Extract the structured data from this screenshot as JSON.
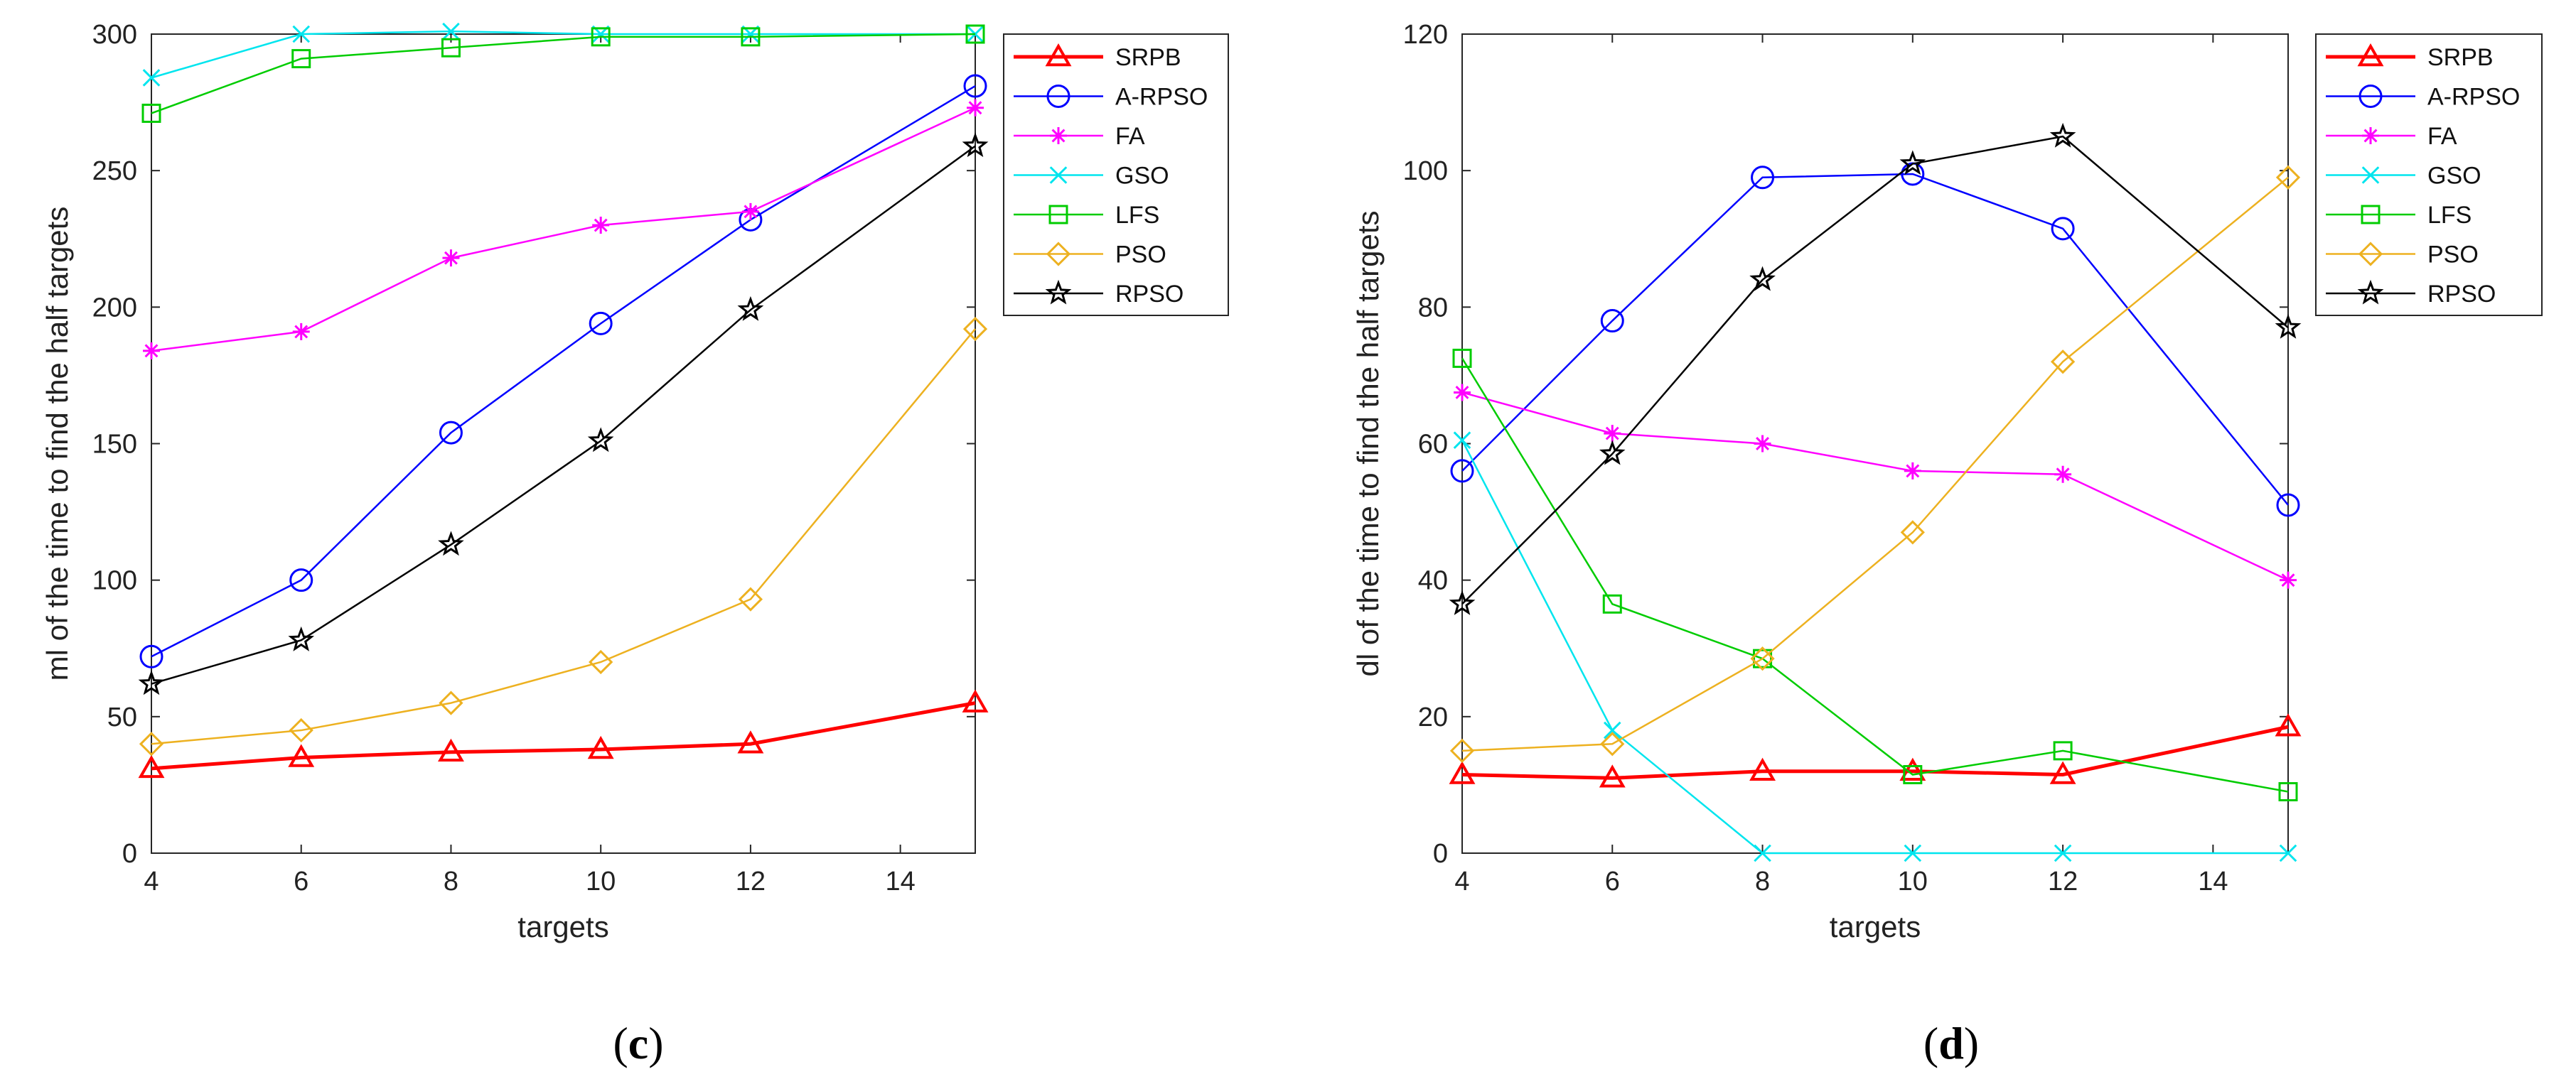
{
  "chart_data": [
    {
      "type": "line",
      "panel": "c",
      "panel_label": {
        "open": "(",
        "letter": "c",
        "close": ")"
      },
      "title": "",
      "xlabel": "targets",
      "ylabel": "ml of the time to find the half targets",
      "xlim": [
        4,
        15
      ],
      "ylim": [
        0,
        300
      ],
      "xticks": [
        4,
        6,
        8,
        10,
        12,
        14
      ],
      "yticks": [
        0,
        50,
        100,
        150,
        200,
        250,
        300
      ],
      "grid": false,
      "legend_position": "outside-right-top",
      "x": [
        4,
        6,
        8,
        10,
        12,
        15
      ],
      "series": [
        {
          "name": "SRPB",
          "color": "#ff0000",
          "marker": "triangle",
          "width": 2,
          "values": [
            31,
            35,
            37,
            38,
            40,
            55
          ]
        },
        {
          "name": "A-RPSO",
          "color": "#0000ff",
          "marker": "circle",
          "width": 1,
          "values": [
            72,
            100,
            154,
            194,
            232,
            281
          ]
        },
        {
          "name": "FA",
          "color": "#ff00ff",
          "marker": "asterisk",
          "width": 1,
          "values": [
            184,
            191,
            218,
            230,
            235,
            273
          ]
        },
        {
          "name": "GSO",
          "color": "#00e5ee",
          "marker": "x",
          "width": 1,
          "values": [
            284,
            300,
            301,
            300,
            300,
            300
          ]
        },
        {
          "name": "LFS",
          "color": "#00cc00",
          "marker": "square",
          "width": 1,
          "values": [
            271,
            291,
            295,
            299,
            299,
            300
          ]
        },
        {
          "name": "PSO",
          "color": "#edb120",
          "marker": "diamond",
          "width": 1,
          "values": [
            40,
            45,
            55,
            70,
            93,
            192
          ]
        },
        {
          "name": "RPSO",
          "color": "#000000",
          "marker": "star",
          "width": 1,
          "values": [
            62,
            78,
            113,
            151,
            199,
            259
          ]
        }
      ]
    },
    {
      "type": "line",
      "panel": "d",
      "panel_label": {
        "open": "(",
        "letter": "d",
        "close": ")"
      },
      "title": "",
      "xlabel": "targets",
      "ylabel": "dl of the time to find the half targets",
      "xlim": [
        4,
        15
      ],
      "ylim": [
        0,
        120
      ],
      "xticks": [
        4,
        6,
        8,
        10,
        12,
        14
      ],
      "yticks": [
        0,
        20,
        40,
        60,
        80,
        100,
        120
      ],
      "grid": false,
      "legend_position": "outside-right-top",
      "x": [
        4,
        6,
        8,
        10,
        12,
        15
      ],
      "series": [
        {
          "name": "SRPB",
          "color": "#ff0000",
          "marker": "triangle",
          "width": 2,
          "values": [
            11.5,
            11,
            12,
            12,
            11.5,
            18.5
          ]
        },
        {
          "name": "A-RPSO",
          "color": "#0000ff",
          "marker": "circle",
          "width": 1,
          "values": [
            56,
            78,
            99,
            99.5,
            91.5,
            51
          ]
        },
        {
          "name": "FA",
          "color": "#ff00ff",
          "marker": "asterisk",
          "width": 1,
          "values": [
            67.5,
            61.5,
            60,
            56,
            55.5,
            40
          ]
        },
        {
          "name": "GSO",
          "color": "#00e5ee",
          "marker": "x",
          "width": 1,
          "values": [
            60.5,
            18,
            0,
            0,
            0,
            0
          ]
        },
        {
          "name": "LFS",
          "color": "#00cc00",
          "marker": "square",
          "width": 1,
          "values": [
            72.5,
            36.5,
            28.5,
            11.5,
            15,
            9
          ]
        },
        {
          "name": "PSO",
          "color": "#edb120",
          "marker": "diamond",
          "width": 1,
          "values": [
            15,
            16,
            28.5,
            47,
            72,
            99
          ]
        },
        {
          "name": "RPSO",
          "color": "#000000",
          "marker": "star",
          "width": 1,
          "values": [
            36.5,
            58.5,
            84,
            101,
            105,
            77
          ]
        }
      ]
    }
  ]
}
